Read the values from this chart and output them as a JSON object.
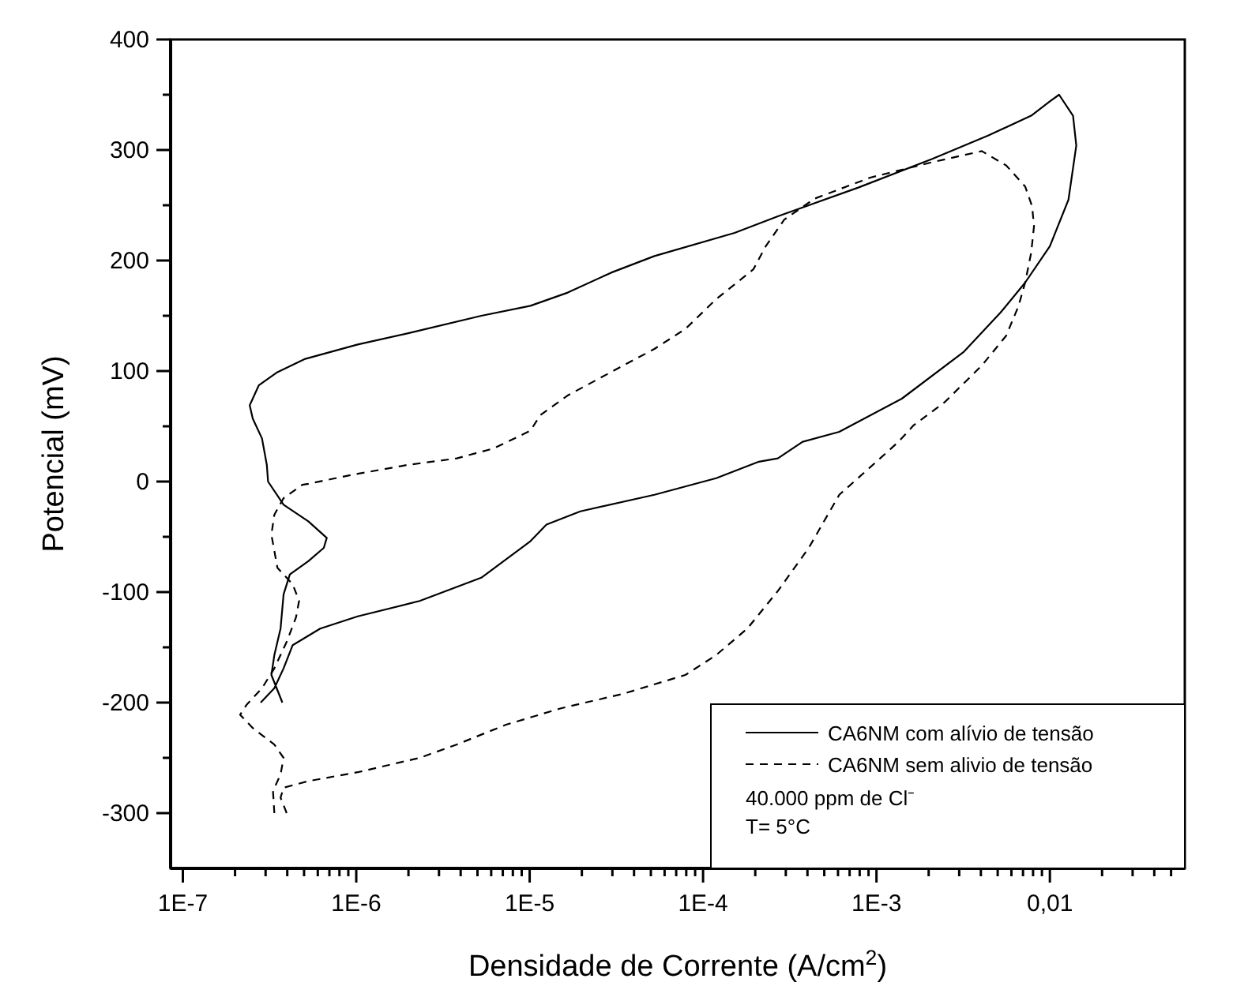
{
  "chart_data": {
    "type": "line",
    "xlabel": "Densidade de Corrente (A/cm$^{2}$)",
    "ylabel": "Potencial (mV)",
    "log": "x",
    "grid": false,
    "legend": "bottom right",
    "marker": "none",
    "xlim": [
      8.5e-08,
      0.06
    ],
    "ylim": [
      -350,
      400
    ],
    "xticks": [
      {
        "value": 1e-07,
        "label": "1E-7"
      },
      {
        "value": 2e-07,
        "label": null
      },
      {
        "value": 3e-07,
        "label": null
      },
      {
        "value": 4e-07,
        "label": null
      },
      {
        "value": 5e-07,
        "label": null
      },
      {
        "value": 6e-07,
        "label": null
      },
      {
        "value": 7e-07,
        "label": null
      },
      {
        "value": 8e-07,
        "label": null
      },
      {
        "value": 9e-07,
        "label": null
      },
      {
        "value": 1e-06,
        "label": "1E-6"
      },
      {
        "value": 2e-06,
        "label": null
      },
      {
        "value": 3e-06,
        "label": null
      },
      {
        "value": 4e-06,
        "label": null
      },
      {
        "value": 5e-06,
        "label": null
      },
      {
        "value": 6e-06,
        "label": null
      },
      {
        "value": 7e-06,
        "label": null
      },
      {
        "value": 8e-06,
        "label": null
      },
      {
        "value": 9e-06,
        "label": null
      },
      {
        "value": 1e-05,
        "label": "1E-5"
      },
      {
        "value": 2e-05,
        "label": null
      },
      {
        "value": 3e-05,
        "label": null
      },
      {
        "value": 4e-05,
        "label": null
      },
      {
        "value": 5e-05,
        "label": null
      },
      {
        "value": 6e-05,
        "label": null
      },
      {
        "value": 7e-05,
        "label": null
      },
      {
        "value": 8e-05,
        "label": null
      },
      {
        "value": 9e-05,
        "label": null
      },
      {
        "value": 0.0001,
        "label": "1E-4"
      },
      {
        "value": 0.0002,
        "label": null
      },
      {
        "value": 0.0003,
        "label": null
      },
      {
        "value": 0.0004,
        "label": null
      },
      {
        "value": 0.0005,
        "label": null
      },
      {
        "value": 0.0006,
        "label": null
      },
      {
        "value": 0.0007,
        "label": null
      },
      {
        "value": 0.0008,
        "label": null
      },
      {
        "value": 0.0009,
        "label": null
      },
      {
        "value": 0.001,
        "label": "1E-3"
      },
      {
        "value": 0.002,
        "label": null
      },
      {
        "value": 0.003,
        "label": null
      },
      {
        "value": 0.004,
        "label": null
      },
      {
        "value": 0.005,
        "label": null
      },
      {
        "value": 0.006,
        "label": null
      },
      {
        "value": 0.007,
        "label": null
      },
      {
        "value": 0.008,
        "label": null
      },
      {
        "value": 0.009,
        "label": null
      },
      {
        "value": 0.01,
        "label": "0,01"
      },
      {
        "value": 0.02,
        "label": null
      },
      {
        "value": 0.03,
        "label": null
      },
      {
        "value": 0.04,
        "label": null
      },
      {
        "value": 0.05,
        "label": null
      }
    ],
    "yticks": [
      -300,
      {
        "value": -250,
        "label": null
      },
      -200,
      {
        "value": -150,
        "label": null
      },
      -100,
      {
        "value": -50,
        "label": null
      },
      0,
      {
        "value": 50,
        "label": null
      },
      100,
      {
        "value": 150,
        "label": null
      },
      200,
      {
        "value": 250,
        "label": null
      },
      300,
      {
        "value": 350,
        "label": null
      },
      400
    ],
    "annotations": [
      "40.000 ppm de Cl⁻",
      "T= 5°C"
    ],
    "series": [
      {
        "name": "CA6NM com alívio de tensão",
        "color": "#000000",
        "line_style": "solid",
        "x": [
          3.75e-07,
          3.24e-07,
          3.37e-07,
          3.66e-07,
          3.81e-07,
          4.14e-07,
          5.29e-07,
          6.5e-07,
          6.76e-07,
          5.29e-07,
          3.81e-07,
          3.1e-07,
          3.05e-07,
          2.86e-07,
          2.53e-07,
          2.43e-07,
          2.74e-07,
          3.51e-07,
          5.08e-07,
          1.02e-06,
          1.97e-06,
          5.26e-06,
          1.01e-05,
          1.66e-05,
          2.95e-05,
          5.24e-05,
          0.000152,
          0.00027,
          0.000785,
          0.0021,
          0.0044,
          0.0078,
          0.01,
          0.0113,
          0.0136,
          0.0142,
          0.0128,
          0.01,
          0.0072,
          0.0052,
          0.00317,
          0.0014,
          0.00061,
          0.000375,
          0.00027,
          0.00021,
          0.000119,
          5.24e-05,
          1.96e-05,
          1.25e-05,
          1.01e-05,
          5.26e-06,
          2.32e-06,
          1.02e-06,
          6.2e-07,
          4.3e-07,
          3.81e-07,
          3.37e-07,
          2.81e-07
        ],
        "values": [
          -200,
          -175,
          -157,
          -133,
          -102,
          -84,
          -72,
          -60,
          -51,
          -36,
          -21,
          0,
          15,
          39,
          57,
          69,
          87,
          99,
          111,
          124,
          134,
          150,
          159,
          171,
          189,
          204,
          225,
          240,
          266,
          292,
          313,
          331,
          344,
          350,
          331,
          304,
          255,
          213,
          180,
          153,
          117,
          75,
          45,
          36,
          21,
          18,
          3,
          -12,
          -27,
          -39,
          -54,
          -87,
          -108,
          -122,
          -133,
          -148,
          -169,
          -187,
          -200
        ]
      },
      {
        "name": "CA6NM sem alivio de tensão",
        "color": "#000000",
        "line_style": "dashed",
        "x": [
          3.97e-07,
          3.66e-07,
          3.81e-07,
          5.3e-07,
          1.02e-06,
          2.32e-06,
          3.79e-06,
          7.3e-06,
          1.53e-05,
          3.47e-05,
          7.9e-05,
          0.000119,
          0.00018,
          0.00027,
          0.000407,
          0.00061,
          0.001,
          0.00134,
          0.00164,
          0.00248,
          0.00405,
          0.0056,
          0.0066,
          0.0072,
          0.0078,
          0.0081,
          0.0079,
          0.0072,
          0.0056,
          0.00405,
          0.0021,
          0.00092,
          0.00044,
          0.000294,
          0.00023,
          0.000195,
          0.000119,
          7.9e-05,
          5.24e-05,
          3.47e-05,
          1.66e-05,
          1.15e-05,
          1.01e-05,
          6.2e-06,
          3.8e-06,
          1.97e-06,
          9.4e-07,
          5.3e-07,
          4.88e-07,
          3.81e-07,
          3.37e-07,
          3.24e-07,
          3.51e-07,
          4.3e-07,
          4.68e-07,
          4.49e-07,
          3.97e-07,
          3.37e-07,
          2.86e-07,
          2.33e-07,
          2.14e-07,
          2.53e-07,
          3.37e-07,
          3.81e-07,
          3.66e-07,
          3.31e-07,
          3.37e-07
        ],
        "values": [
          -300,
          -286,
          -277,
          -271,
          -263,
          -250,
          -238,
          -220,
          -205,
          -192,
          -175,
          -157,
          -133,
          -99,
          -60,
          -12,
          18,
          36,
          51,
          72,
          105,
          132,
          159,
          180,
          207,
          231,
          249,
          267,
          286,
          299,
          289,
          275,
          256,
          237,
          213,
          192,
          165,
          138,
          120,
          105,
          78,
          60,
          46,
          30,
          21,
          15,
          6,
          -2,
          -3,
          -15,
          -30,
          -48,
          -78,
          -93,
          -108,
          -123,
          -145,
          -169,
          -187,
          -202,
          -211,
          -223,
          -238,
          -250,
          -265,
          -280,
          -300
        ]
      }
    ]
  }
}
